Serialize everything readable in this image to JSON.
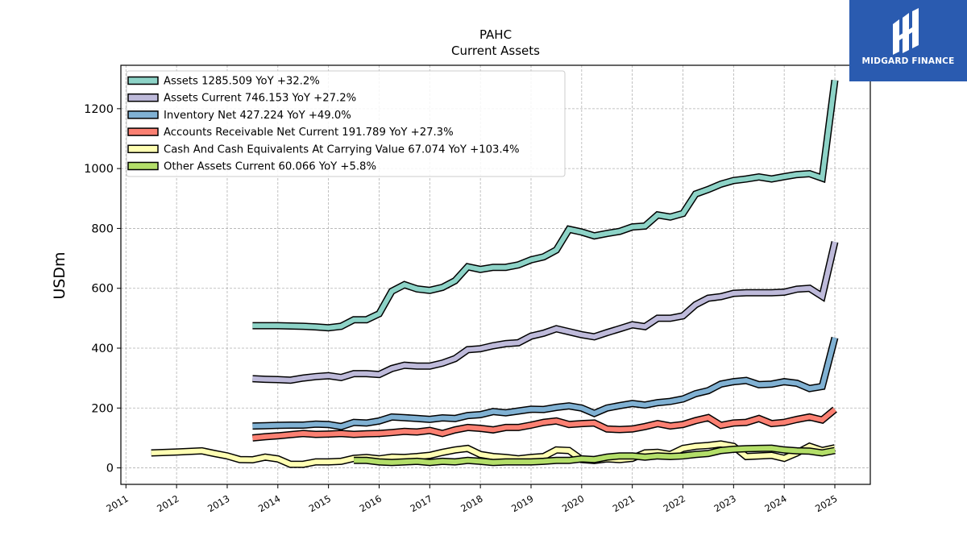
{
  "chart_data": {
    "type": "line",
    "title": "PAHC",
    "subtitle": "Current  Assets",
    "ylabel": "USDm",
    "xlabel": "",
    "ylim": [
      -55,
      1345
    ],
    "xlim": [
      2010.9,
      2025.7
    ],
    "yticks": [
      0,
      200,
      400,
      600,
      800,
      1000,
      1200
    ],
    "xticks": [
      "2011",
      "2012",
      "2013",
      "2014",
      "2015",
      "2016",
      "2017",
      "2018",
      "2019",
      "2020",
      "2021",
      "2022",
      "2023",
      "2024",
      "2025"
    ],
    "grid": true,
    "legend_position": "top-left",
    "series": [
      {
        "name": "Assets  1285.509 YoY +32.2%",
        "color": "#8dd3c7",
        "points": [
          [
            2013.5,
            475
          ],
          [
            2013.75,
            475
          ],
          [
            2014,
            475
          ],
          [
            2014.25,
            474
          ],
          [
            2014.5,
            473
          ],
          [
            2014.75,
            471
          ],
          [
            2015,
            468
          ],
          [
            2015.25,
            473
          ],
          [
            2015.5,
            495
          ],
          [
            2015.75,
            495
          ],
          [
            2016,
            515
          ],
          [
            2016.25,
            590
          ],
          [
            2016.5,
            612
          ],
          [
            2016.75,
            598
          ],
          [
            2017,
            593
          ],
          [
            2017.25,
            603
          ],
          [
            2017.5,
            625
          ],
          [
            2017.75,
            672
          ],
          [
            2018,
            663
          ],
          [
            2018.25,
            670
          ],
          [
            2018.5,
            670
          ],
          [
            2018.75,
            678
          ],
          [
            2019,
            695
          ],
          [
            2019.25,
            705
          ],
          [
            2019.5,
            728
          ],
          [
            2019.75,
            797
          ],
          [
            2020,
            788
          ],
          [
            2020.25,
            775
          ],
          [
            2020.5,
            783
          ],
          [
            2020.75,
            790
          ],
          [
            2021,
            805
          ],
          [
            2021.25,
            808
          ],
          [
            2021.5,
            845
          ],
          [
            2021.75,
            838
          ],
          [
            2022,
            850
          ],
          [
            2022.25,
            915
          ],
          [
            2022.5,
            930
          ],
          [
            2022.75,
            948
          ],
          [
            2023,
            960
          ],
          [
            2023.25,
            965
          ],
          [
            2023.5,
            972
          ],
          [
            2023.75,
            965
          ],
          [
            2024,
            973
          ],
          [
            2024.25,
            980
          ],
          [
            2024.5,
            983
          ],
          [
            2024.75,
            968
          ],
          [
            2025,
            1295
          ]
        ]
      },
      {
        "name": "Assets Current  746.153 YoY +27.2%",
        "color": "#bebada",
        "points": [
          [
            2013.5,
            298
          ],
          [
            2013.75,
            296
          ],
          [
            2014,
            295
          ],
          [
            2014.25,
            293
          ],
          [
            2014.5,
            300
          ],
          [
            2014.75,
            305
          ],
          [
            2015,
            308
          ],
          [
            2015.25,
            302
          ],
          [
            2015.5,
            315
          ],
          [
            2015.75,
            315
          ],
          [
            2016,
            312
          ],
          [
            2016.25,
            332
          ],
          [
            2016.5,
            343
          ],
          [
            2016.75,
            340
          ],
          [
            2017,
            340
          ],
          [
            2017.25,
            350
          ],
          [
            2017.5,
            365
          ],
          [
            2017.75,
            395
          ],
          [
            2018,
            398
          ],
          [
            2018.25,
            408
          ],
          [
            2018.5,
            415
          ],
          [
            2018.75,
            418
          ],
          [
            2019,
            440
          ],
          [
            2019.25,
            450
          ],
          [
            2019.5,
            465
          ],
          [
            2019.75,
            455
          ],
          [
            2020,
            445
          ],
          [
            2020.25,
            438
          ],
          [
            2020.5,
            452
          ],
          [
            2020.75,
            465
          ],
          [
            2021,
            478
          ],
          [
            2021.25,
            472
          ],
          [
            2021.5,
            500
          ],
          [
            2021.75,
            500
          ],
          [
            2022,
            508
          ],
          [
            2022.25,
            545
          ],
          [
            2022.5,
            567
          ],
          [
            2022.75,
            572
          ],
          [
            2023,
            583
          ],
          [
            2023.25,
            585
          ],
          [
            2023.5,
            585
          ],
          [
            2023.75,
            585
          ],
          [
            2024,
            587
          ],
          [
            2024.25,
            597
          ],
          [
            2024.5,
            600
          ],
          [
            2024.75,
            573
          ],
          [
            2025,
            755
          ]
        ]
      },
      {
        "name": "Inventory Net  427.224 YoY +49.0%",
        "color": "#80b1d3",
        "points": [
          [
            2013.5,
            140
          ],
          [
            2013.75,
            141
          ],
          [
            2014,
            142
          ],
          [
            2014.25,
            143
          ],
          [
            2014.5,
            143
          ],
          [
            2014.75,
            146
          ],
          [
            2015,
            145
          ],
          [
            2015.25,
            138
          ],
          [
            2015.5,
            152
          ],
          [
            2015.75,
            150
          ],
          [
            2016,
            157
          ],
          [
            2016.25,
            170
          ],
          [
            2016.5,
            168
          ],
          [
            2016.75,
            165
          ],
          [
            2017,
            162
          ],
          [
            2017.25,
            167
          ],
          [
            2017.5,
            165
          ],
          [
            2017.75,
            175
          ],
          [
            2018,
            178
          ],
          [
            2018.25,
            188
          ],
          [
            2018.5,
            184
          ],
          [
            2018.75,
            190
          ],
          [
            2019,
            196
          ],
          [
            2019.25,
            195
          ],
          [
            2019.5,
            202
          ],
          [
            2019.75,
            207
          ],
          [
            2020,
            200
          ],
          [
            2020.25,
            182
          ],
          [
            2020.5,
            200
          ],
          [
            2020.75,
            208
          ],
          [
            2021,
            215
          ],
          [
            2021.25,
            210
          ],
          [
            2021.5,
            218
          ],
          [
            2021.75,
            222
          ],
          [
            2022,
            230
          ],
          [
            2022.25,
            248
          ],
          [
            2022.5,
            258
          ],
          [
            2022.75,
            280
          ],
          [
            2023,
            288
          ],
          [
            2023.25,
            292
          ],
          [
            2023.5,
            278
          ],
          [
            2023.75,
            280
          ],
          [
            2024,
            288
          ],
          [
            2024.25,
            283
          ],
          [
            2024.5,
            265
          ],
          [
            2024.75,
            272
          ],
          [
            2025,
            435
          ]
        ]
      },
      {
        "name": "Accounts Receivable Net Current  191.789 YoY +27.3%",
        "color": "#fb8072",
        "points": [
          [
            2013.5,
            100
          ],
          [
            2013.75,
            104
          ],
          [
            2014,
            107
          ],
          [
            2014.25,
            111
          ],
          [
            2014.5,
            115
          ],
          [
            2014.75,
            112
          ],
          [
            2015,
            113
          ],
          [
            2015.25,
            115
          ],
          [
            2015.5,
            112
          ],
          [
            2015.75,
            114
          ],
          [
            2016,
            115
          ],
          [
            2016.25,
            118
          ],
          [
            2016.5,
            122
          ],
          [
            2016.75,
            120
          ],
          [
            2017,
            125
          ],
          [
            2017.25,
            115
          ],
          [
            2017.5,
            127
          ],
          [
            2017.75,
            135
          ],
          [
            2018,
            132
          ],
          [
            2018.25,
            127
          ],
          [
            2018.5,
            135
          ],
          [
            2018.75,
            135
          ],
          [
            2019,
            143
          ],
          [
            2019.25,
            152
          ],
          [
            2019.5,
            157
          ],
          [
            2019.75,
            145
          ],
          [
            2020,
            148
          ],
          [
            2020.25,
            150
          ],
          [
            2020.5,
            130
          ],
          [
            2020.75,
            128
          ],
          [
            2021,
            130
          ],
          [
            2021.25,
            138
          ],
          [
            2021.5,
            148
          ],
          [
            2021.75,
            140
          ],
          [
            2022,
            145
          ],
          [
            2022.25,
            158
          ],
          [
            2022.5,
            168
          ],
          [
            2022.75,
            142
          ],
          [
            2023,
            150
          ],
          [
            2023.25,
            152
          ],
          [
            2023.5,
            165
          ],
          [
            2023.75,
            148
          ],
          [
            2024,
            152
          ],
          [
            2024.25,
            162
          ],
          [
            2024.5,
            170
          ],
          [
            2024.75,
            160
          ],
          [
            2025,
            195
          ]
        ]
      },
      {
        "name": "Cash And Cash Equivalents At Carrying Value  67.074 YoY +103.4%",
        "color": "#ffffb3",
        "points": [
          [
            2011.5,
            50
          ],
          [
            2012,
            53
          ],
          [
            2012.5,
            57
          ],
          [
            2012.75,
            48
          ],
          [
            2013,
            40
          ],
          [
            2013.25,
            28
          ],
          [
            2013.5,
            27
          ],
          [
            2013.75,
            36
          ],
          [
            2014,
            30
          ],
          [
            2014.25,
            12
          ],
          [
            2014.5,
            12
          ],
          [
            2014.75,
            20
          ],
          [
            2015,
            20
          ],
          [
            2015.25,
            22
          ],
          [
            2015.5,
            32
          ],
          [
            2015.75,
            35
          ],
          [
            2016,
            30
          ],
          [
            2016.25,
            36
          ],
          [
            2016.5,
            35
          ],
          [
            2016.75,
            38
          ],
          [
            2017,
            42
          ],
          [
            2017.25,
            52
          ],
          [
            2017.5,
            60
          ],
          [
            2017.75,
            65
          ],
          [
            2018,
            45
          ],
          [
            2018.25,
            38
          ],
          [
            2018.5,
            35
          ],
          [
            2018.75,
            30
          ],
          [
            2019,
            35
          ],
          [
            2019.25,
            38
          ],
          [
            2019.5,
            60
          ],
          [
            2019.75,
            58
          ],
          [
            2020,
            28
          ],
          [
            2020.25,
            25
          ],
          [
            2020.5,
            30
          ],
          [
            2020.75,
            28
          ],
          [
            2021,
            32
          ],
          [
            2021.25,
            50
          ],
          [
            2021.5,
            52
          ],
          [
            2021.75,
            45
          ],
          [
            2022,
            65
          ],
          [
            2022.25,
            72
          ],
          [
            2022.5,
            75
          ],
          [
            2022.75,
            80
          ],
          [
            2023,
            72
          ],
          [
            2023.25,
            38
          ],
          [
            2023.5,
            40
          ],
          [
            2023.75,
            42
          ],
          [
            2024,
            32
          ],
          [
            2024.25,
            50
          ],
          [
            2024.5,
            72
          ],
          [
            2024.75,
            58
          ],
          [
            2025,
            67
          ]
        ]
      },
      {
        "name": "Other Assets Current  60.066 YoY +5.8%",
        "color": "#b3de69",
        "points": [
          [
            2015.5,
            25
          ],
          [
            2015.75,
            25
          ],
          [
            2016,
            20
          ],
          [
            2016.25,
            18
          ],
          [
            2016.5,
            20
          ],
          [
            2016.75,
            22
          ],
          [
            2017,
            18
          ],
          [
            2017.25,
            22
          ],
          [
            2017.5,
            20
          ],
          [
            2017.75,
            25
          ],
          [
            2018,
            22
          ],
          [
            2018.25,
            18
          ],
          [
            2018.5,
            20
          ],
          [
            2018.75,
            20
          ],
          [
            2019,
            20
          ],
          [
            2019.25,
            22
          ],
          [
            2019.5,
            25
          ],
          [
            2019.75,
            25
          ],
          [
            2020,
            30
          ],
          [
            2020.25,
            28
          ],
          [
            2020.5,
            36
          ],
          [
            2020.75,
            40
          ],
          [
            2021,
            40
          ],
          [
            2021.25,
            36
          ],
          [
            2021.5,
            40
          ],
          [
            2021.75,
            38
          ],
          [
            2022,
            40
          ],
          [
            2022.25,
            45
          ],
          [
            2022.5,
            48
          ],
          [
            2022.75,
            58
          ],
          [
            2023,
            62
          ],
          [
            2023.25,
            64
          ],
          [
            2023.5,
            65
          ],
          [
            2023.75,
            66
          ],
          [
            2024,
            60
          ],
          [
            2024.25,
            57
          ],
          [
            2024.5,
            56
          ],
          [
            2024.75,
            50
          ],
          [
            2025,
            58
          ]
        ]
      }
    ]
  },
  "logo": {
    "text": "MIDGARD FINANCE",
    "color": "#2a5bb0"
  }
}
